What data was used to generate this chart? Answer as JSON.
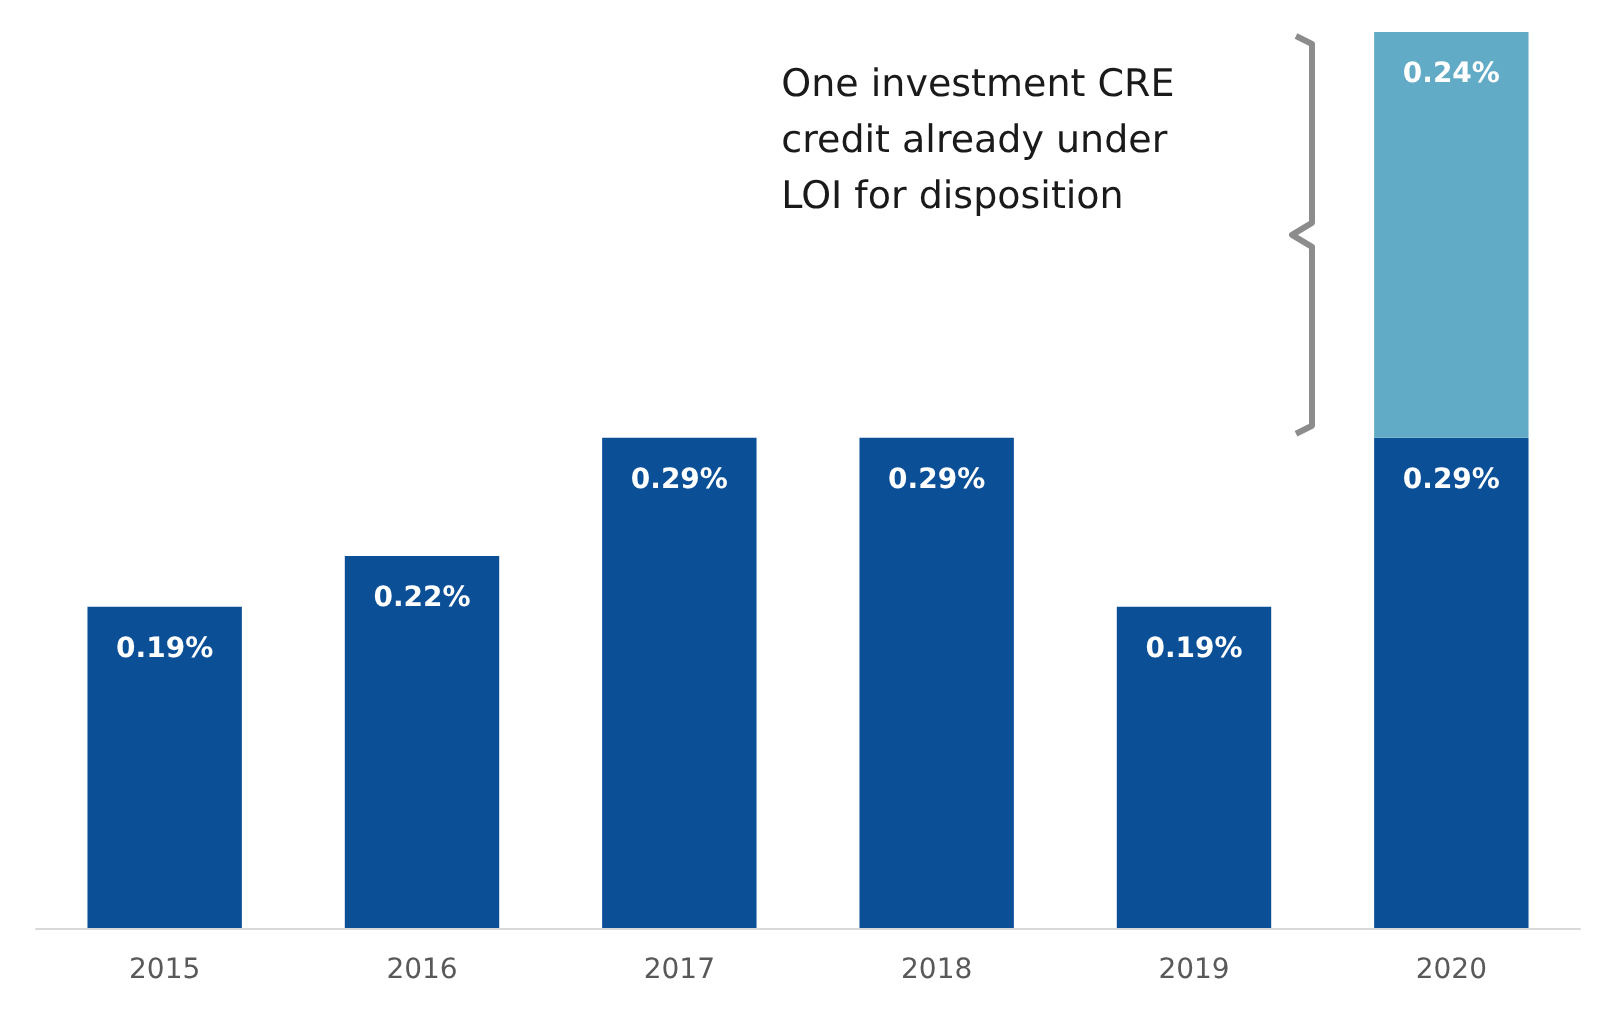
{
  "chart_data": {
    "type": "bar",
    "stacked": true,
    "categories": [
      "2015",
      "2016",
      "2017",
      "2018",
      "2019",
      "2020"
    ],
    "series": [
      {
        "color": "#0b4f97",
        "values": [
          0.19,
          0.22,
          0.29,
          0.29,
          0.19,
          0.29
        ],
        "value_labels": [
          "0.19%",
          "0.22%",
          "0.29%",
          "0.29%",
          "0.19%",
          "0.29%"
        ]
      },
      {
        "color": "#62abc6",
        "values": [
          null,
          null,
          null,
          null,
          null,
          0.24
        ],
        "value_labels": [
          null,
          null,
          null,
          null,
          null,
          "0.24%"
        ]
      }
    ],
    "annotations": [
      "One investment CRE credit already under LOI for disposition"
    ]
  }
}
